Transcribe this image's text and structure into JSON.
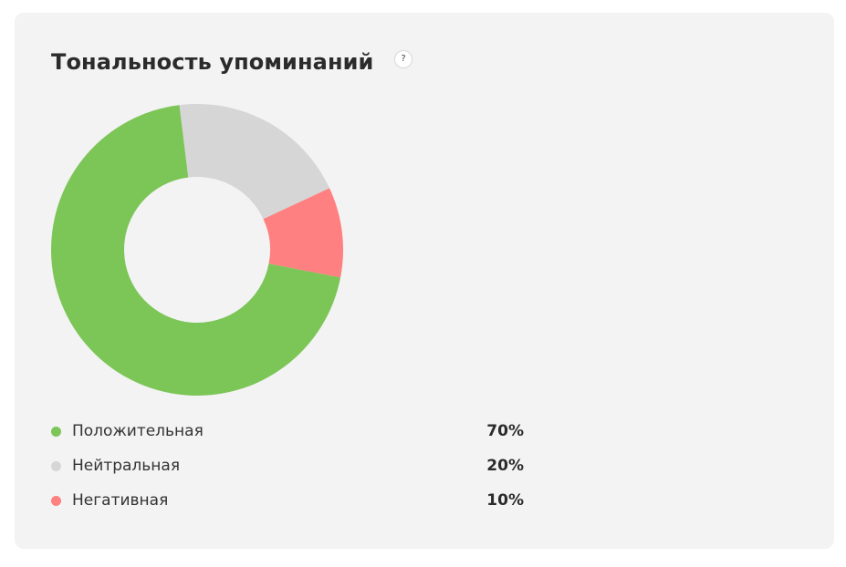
{
  "chart_data": {
    "type": "pie",
    "title": "Тональность упоминаний",
    "categories": [
      "Положительная",
      "Нейтральная",
      "Негативная"
    ],
    "values": [
      70,
      20,
      10
    ],
    "value_labels": [
      "70%",
      "20%",
      "10%"
    ],
    "colors": [
      "#7cc557",
      "#d6d6d6",
      "#ff8080"
    ],
    "legend_position": "bottom"
  },
  "help_icon": {
    "glyph": "?"
  }
}
